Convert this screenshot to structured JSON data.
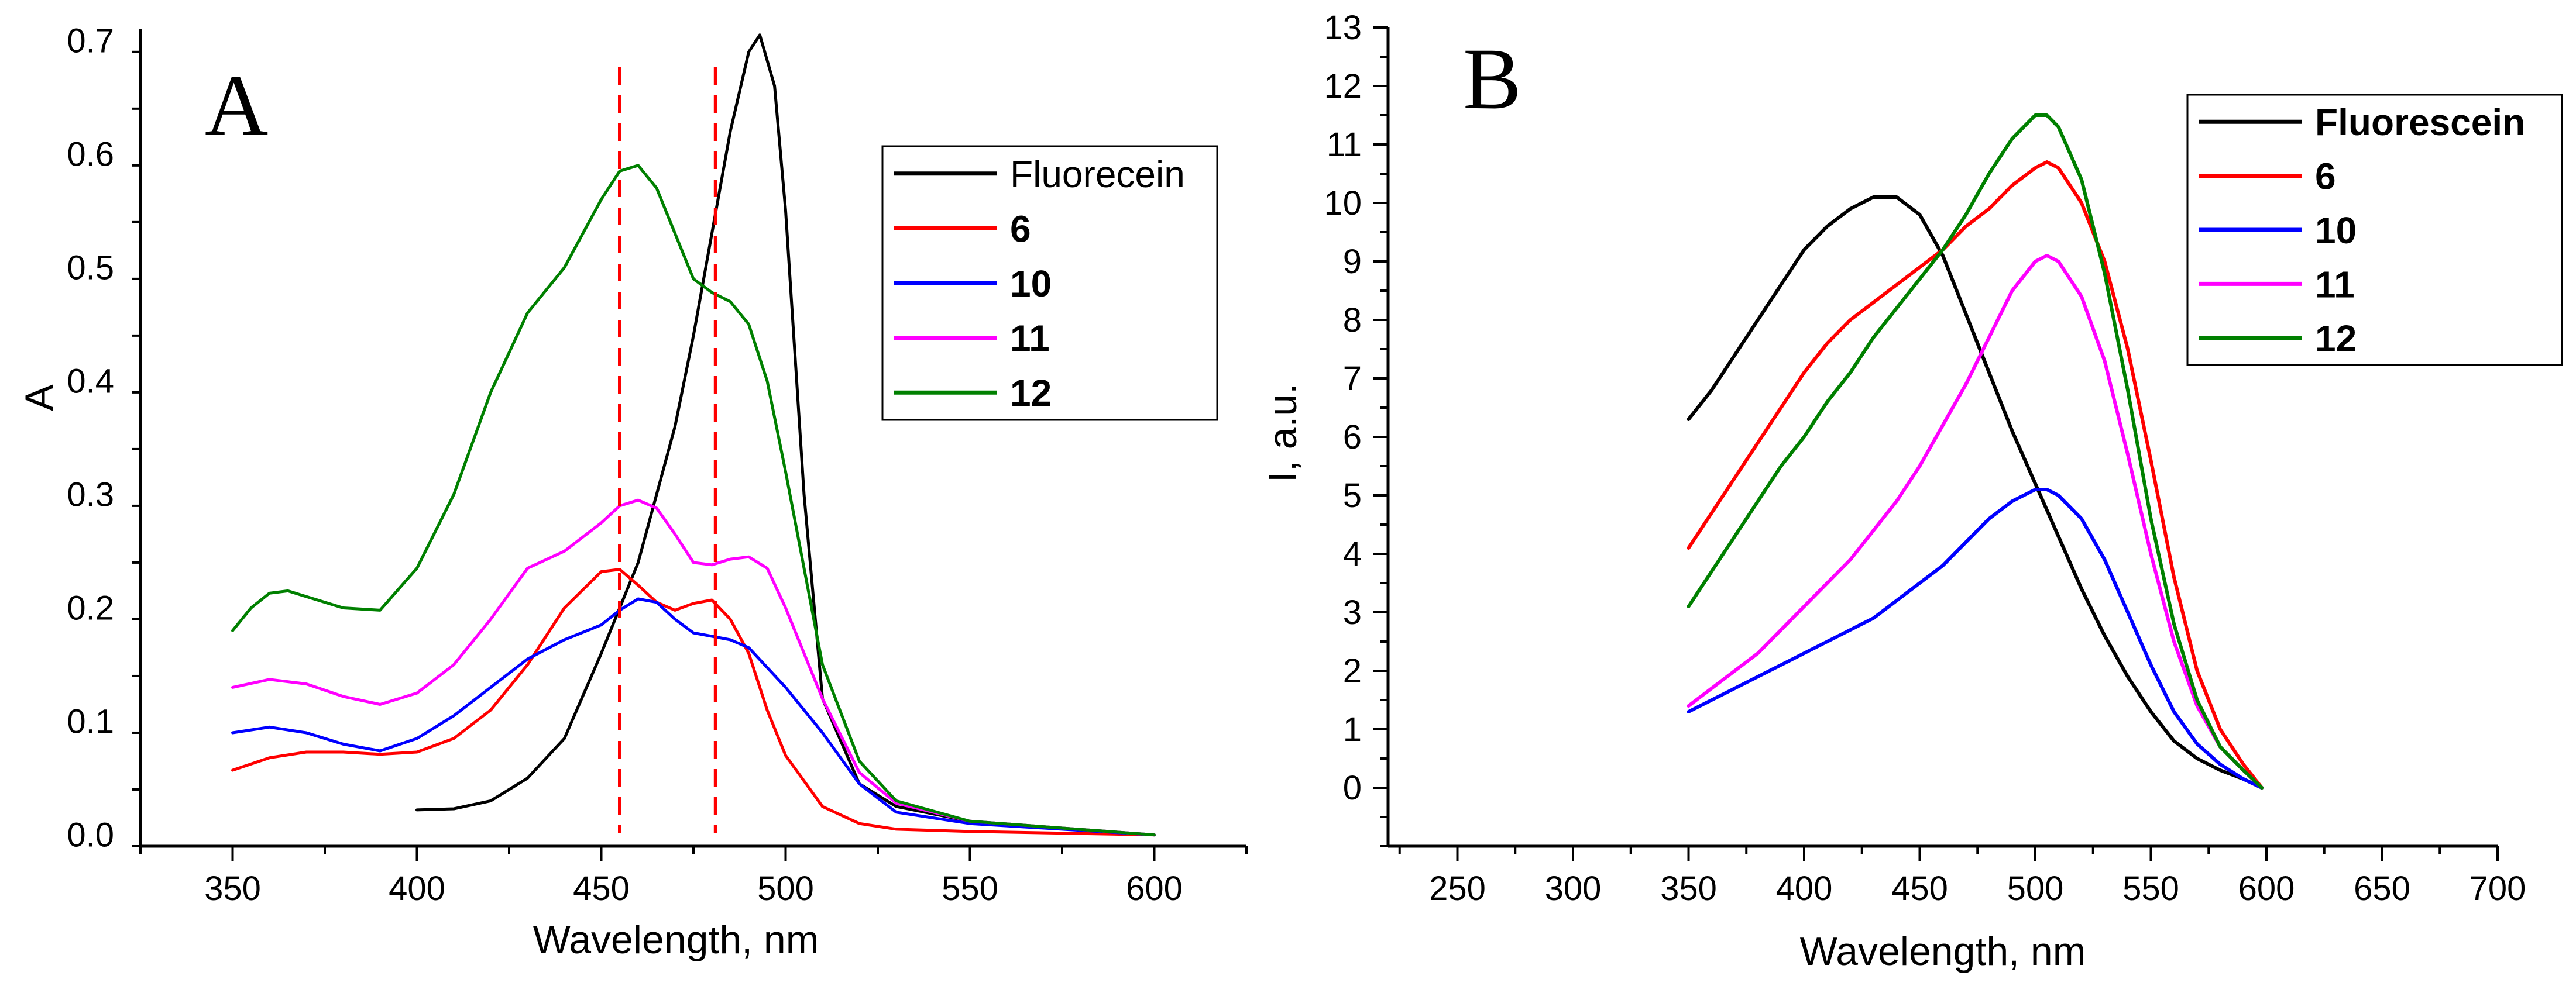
{
  "colors": {
    "Fluorecein": "#000000",
    "Fluorescein": "#000000",
    "6": "#ff0000",
    "10": "#0000ff",
    "11": "#ff00ff",
    "12": "#008000",
    "dashed_line": "#ff0000"
  },
  "chart_data": [
    {
      "type": "line",
      "panel_label": "A",
      "title": "",
      "xlabel": "Wavelength, nm",
      "ylabel": "A",
      "xlim": [
        325,
        625
      ],
      "ylim": [
        -0.01,
        0.71
      ],
      "xticks": [
        350,
        400,
        450,
        500,
        550,
        600
      ],
      "yticks": [
        0.0,
        0.1,
        0.2,
        0.3,
        0.4,
        0.5,
        0.6,
        0.7
      ],
      "xtick_labels": [
        "350",
        "400",
        "450",
        "500",
        "550",
        "600"
      ],
      "ytick_labels": [
        "0.0",
        "0.1",
        "0.2",
        "0.3",
        "0.4",
        "0.5",
        "0.6",
        "0.7"
      ],
      "legend": {
        "position": "top-right",
        "entries": [
          "Fluorecein",
          "6",
          "10",
          "11",
          "12"
        ]
      },
      "reference_lines": [
        {
          "orientation": "vertical",
          "x": 455,
          "style": "dashed"
        },
        {
          "orientation": "vertical",
          "x": 481,
          "style": "dashed"
        }
      ],
      "series": [
        {
          "name": "Fluorecein",
          "x": [
            400,
            410,
            420,
            430,
            440,
            450,
            460,
            465,
            470,
            475,
            480,
            485,
            490,
            493,
            497,
            500,
            505,
            510,
            520,
            530,
            550,
            600
          ],
          "y": [
            0.022,
            0.023,
            0.03,
            0.05,
            0.085,
            0.16,
            0.24,
            0.3,
            0.36,
            0.44,
            0.53,
            0.62,
            0.69,
            0.705,
            0.66,
            0.55,
            0.3,
            0.12,
            0.045,
            0.025,
            0.012,
            0.0
          ]
        },
        {
          "name": "6",
          "x": [
            350,
            360,
            370,
            380,
            390,
            400,
            410,
            420,
            430,
            440,
            450,
            455,
            460,
            465,
            470,
            475,
            480,
            485,
            490,
            495,
            500,
            510,
            520,
            530,
            550,
            600
          ],
          "y": [
            0.057,
            0.068,
            0.073,
            0.073,
            0.071,
            0.073,
            0.085,
            0.11,
            0.15,
            0.2,
            0.232,
            0.234,
            0.22,
            0.205,
            0.198,
            0.204,
            0.207,
            0.19,
            0.16,
            0.11,
            0.07,
            0.025,
            0.01,
            0.005,
            0.003,
            0.0
          ]
        },
        {
          "name": "10",
          "x": [
            350,
            360,
            370,
            380,
            390,
            400,
            410,
            420,
            430,
            440,
            450,
            455,
            460,
            465,
            470,
            475,
            480,
            485,
            490,
            500,
            510,
            520,
            530,
            550,
            600
          ],
          "y": [
            0.09,
            0.095,
            0.09,
            0.08,
            0.074,
            0.085,
            0.105,
            0.13,
            0.155,
            0.172,
            0.185,
            0.198,
            0.208,
            0.205,
            0.19,
            0.178,
            0.175,
            0.172,
            0.165,
            0.13,
            0.09,
            0.045,
            0.02,
            0.01,
            0.0
          ]
        },
        {
          "name": "11",
          "x": [
            350,
            360,
            370,
            380,
            390,
            400,
            410,
            420,
            430,
            440,
            450,
            455,
            460,
            465,
            470,
            475,
            480,
            485,
            490,
            495,
            500,
            510,
            520,
            530,
            550,
            600
          ],
          "y": [
            0.13,
            0.137,
            0.133,
            0.122,
            0.115,
            0.125,
            0.15,
            0.19,
            0.235,
            0.25,
            0.275,
            0.29,
            0.295,
            0.288,
            0.265,
            0.24,
            0.238,
            0.243,
            0.245,
            0.235,
            0.2,
            0.12,
            0.055,
            0.028,
            0.012,
            0.0
          ]
        },
        {
          "name": "12",
          "x": [
            350,
            355,
            360,
            365,
            370,
            380,
            390,
            400,
            410,
            420,
            430,
            440,
            450,
            455,
            460,
            465,
            470,
            475,
            480,
            485,
            490,
            495,
            500,
            510,
            520,
            530,
            550,
            600
          ],
          "y": [
            0.18,
            0.2,
            0.213,
            0.215,
            0.21,
            0.2,
            0.198,
            0.235,
            0.3,
            0.39,
            0.46,
            0.5,
            0.56,
            0.585,
            0.59,
            0.57,
            0.53,
            0.49,
            0.478,
            0.47,
            0.45,
            0.4,
            0.32,
            0.15,
            0.065,
            0.03,
            0.012,
            0.0
          ]
        }
      ]
    },
    {
      "type": "line",
      "panel_label": "B",
      "title": "",
      "xlabel": "Wavelength, nm",
      "ylabel": "I, a.u.",
      "xlim": [
        220,
        700
      ],
      "ylim": [
        -1,
        13
      ],
      "xticks": [
        250,
        300,
        350,
        400,
        450,
        500,
        550,
        600,
        650,
        700
      ],
      "yticks": [
        0,
        1,
        2,
        3,
        4,
        5,
        6,
        7,
        8,
        9,
        10,
        11,
        12,
        13
      ],
      "xtick_labels": [
        "250",
        "300",
        "350",
        "400",
        "450",
        "500",
        "550",
        "600",
        "650",
        "700"
      ],
      "ytick_labels": [
        "0",
        "1",
        "2",
        "3",
        "4",
        "5",
        "6",
        "7",
        "8",
        "9",
        "10",
        "11",
        "12",
        "13"
      ],
      "legend": {
        "position": "top-right",
        "entries": [
          "Fluorescein",
          "6",
          "10",
          "11",
          "12"
        ]
      },
      "series": [
        {
          "name": "Fluorescein",
          "x": [
            350,
            360,
            370,
            380,
            390,
            400,
            410,
            420,
            430,
            440,
            450,
            460,
            470,
            480,
            490,
            500,
            510,
            520,
            530,
            540,
            550,
            560,
            570,
            580,
            590,
            598
          ],
          "y": [
            6.3,
            6.8,
            7.4,
            8.0,
            8.6,
            9.2,
            9.6,
            9.9,
            10.1,
            10.1,
            9.8,
            9.1,
            8.1,
            7.1,
            6.1,
            5.2,
            4.3,
            3.4,
            2.6,
            1.9,
            1.3,
            0.8,
            0.5,
            0.3,
            0.15,
            0.0
          ]
        },
        {
          "name": "6",
          "x": [
            350,
            360,
            370,
            380,
            390,
            400,
            410,
            420,
            430,
            440,
            450,
            460,
            470,
            480,
            490,
            500,
            505,
            510,
            520,
            530,
            540,
            550,
            560,
            570,
            580,
            590,
            598
          ],
          "y": [
            4.1,
            4.7,
            5.3,
            5.9,
            6.5,
            7.1,
            7.6,
            8.0,
            8.3,
            8.6,
            8.9,
            9.2,
            9.6,
            9.9,
            10.3,
            10.6,
            10.7,
            10.6,
            10.0,
            9.0,
            7.5,
            5.6,
            3.6,
            2.0,
            1.0,
            0.4,
            0.0
          ]
        },
        {
          "name": "10",
          "x": [
            350,
            360,
            370,
            380,
            390,
            400,
            410,
            420,
            430,
            440,
            450,
            460,
            470,
            480,
            490,
            500,
            505,
            510,
            520,
            530,
            540,
            550,
            560,
            570,
            580,
            590,
            598
          ],
          "y": [
            1.3,
            1.5,
            1.7,
            1.9,
            2.1,
            2.3,
            2.5,
            2.7,
            2.9,
            3.2,
            3.5,
            3.8,
            4.2,
            4.6,
            4.9,
            5.1,
            5.1,
            5.0,
            4.6,
            3.9,
            3.0,
            2.1,
            1.3,
            0.75,
            0.4,
            0.15,
            0.0
          ]
        },
        {
          "name": "11",
          "x": [
            350,
            360,
            370,
            380,
            390,
            400,
            410,
            420,
            430,
            440,
            450,
            460,
            470,
            480,
            490,
            500,
            505,
            510,
            520,
            530,
            540,
            550,
            560,
            570,
            580,
            590,
            598
          ],
          "y": [
            1.4,
            1.7,
            2.0,
            2.3,
            2.7,
            3.1,
            3.5,
            3.9,
            4.4,
            4.9,
            5.5,
            6.2,
            6.9,
            7.7,
            8.5,
            9.0,
            9.1,
            9.0,
            8.4,
            7.3,
            5.7,
            4.0,
            2.5,
            1.4,
            0.7,
            0.3,
            0.0
          ]
        },
        {
          "name": "12",
          "x": [
            350,
            360,
            370,
            380,
            390,
            400,
            410,
            420,
            430,
            440,
            450,
            460,
            470,
            480,
            490,
            500,
            505,
            510,
            520,
            530,
            540,
            550,
            560,
            570,
            580,
            590,
            598
          ],
          "y": [
            3.1,
            3.7,
            4.3,
            4.9,
            5.5,
            6.0,
            6.6,
            7.1,
            7.7,
            8.2,
            8.7,
            9.2,
            9.8,
            10.5,
            11.1,
            11.5,
            11.5,
            11.3,
            10.4,
            8.8,
            6.8,
            4.6,
            2.8,
            1.5,
            0.7,
            0.3,
            0.0
          ]
        }
      ]
    }
  ]
}
